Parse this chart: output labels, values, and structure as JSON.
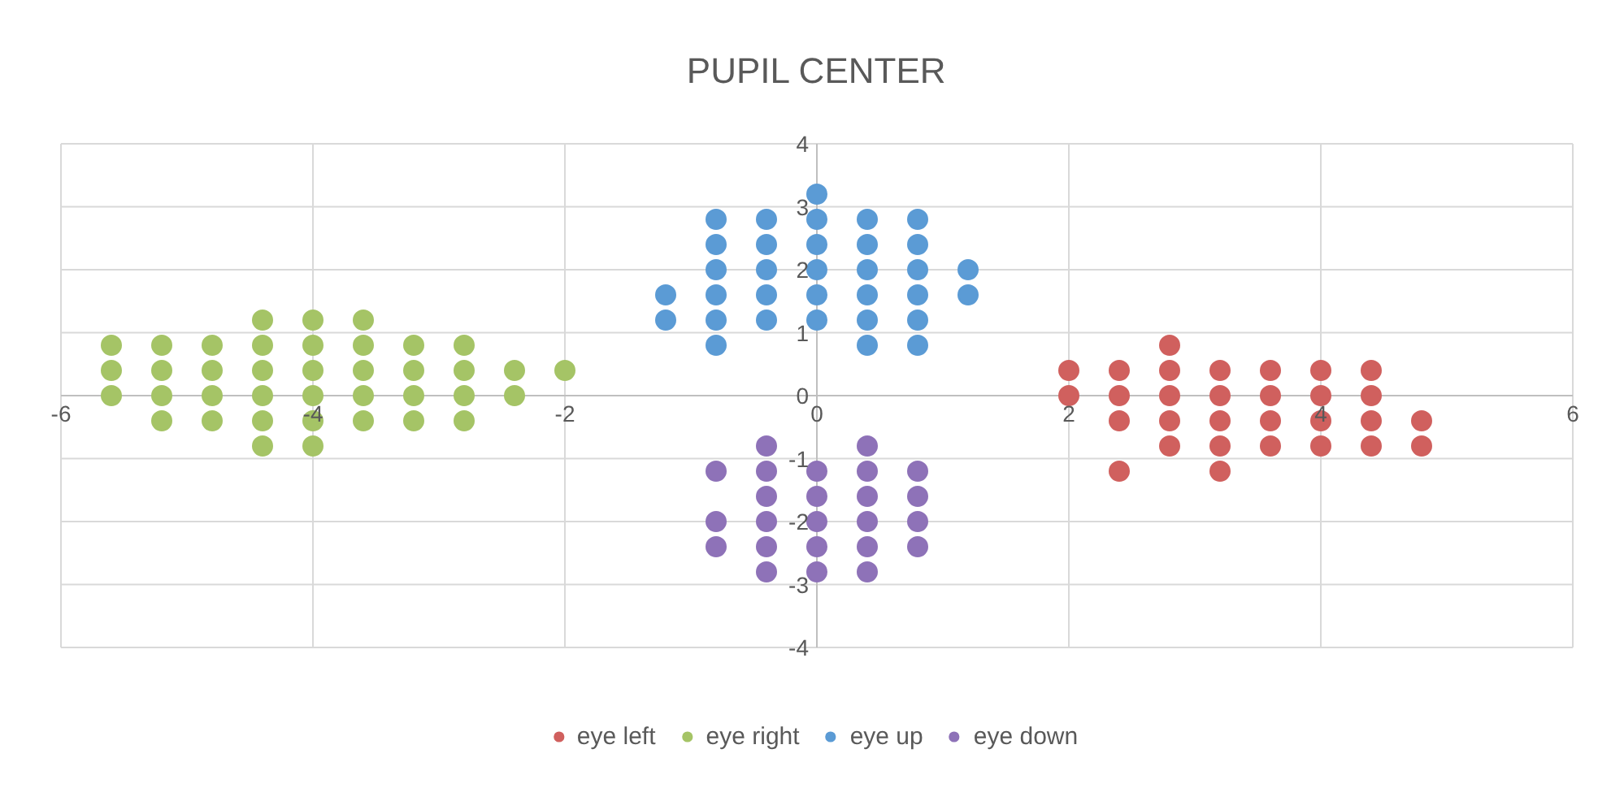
{
  "chart_data": {
    "type": "scatter",
    "title": "PUPIL CENTER",
    "xlim": [
      -6,
      6
    ],
    "ylim": [
      -4,
      4
    ],
    "xticks": [
      -6,
      -4,
      -2,
      0,
      2,
      4,
      6
    ],
    "yticks": [
      -4,
      -3,
      -2,
      -1,
      0,
      1,
      2,
      3,
      4
    ],
    "grid": true,
    "legend": "bottom",
    "marker": "circle",
    "series": [
      {
        "name": "eye left",
        "color": "#d0605e",
        "x": [
          2.0,
          2.0,
          2.4,
          2.4,
          2.4,
          2.4,
          2.8,
          2.8,
          2.8,
          2.8,
          2.8,
          3.2,
          3.2,
          3.2,
          3.2,
          3.2,
          3.6,
          3.6,
          3.6,
          3.6,
          4.0,
          4.0,
          4.0,
          4.0,
          4.4,
          4.4,
          4.4,
          4.4,
          4.8,
          4.8
        ],
        "values": [
          0.4,
          0,
          0.4,
          0,
          -0.4,
          -1.2,
          0.8,
          0.4,
          0,
          -0.4,
          -0.8,
          0.4,
          0,
          -0.4,
          -0.8,
          -1.2,
          0.4,
          0,
          -0.4,
          -0.8,
          0.4,
          0,
          -0.4,
          -0.8,
          0.4,
          0,
          -0.4,
          -0.8,
          -0.4,
          -0.8
        ]
      },
      {
        "name": "eye right",
        "color": "#a5c466",
        "x": [
          -5.6,
          -5.6,
          -5.6,
          -5.2,
          -5.2,
          -5.2,
          -5.2,
          -4.8,
          -4.8,
          -4.8,
          -4.8,
          -4.4,
          -4.4,
          -4.4,
          -4.4,
          -4.4,
          -4.4,
          -4.0,
          -4.0,
          -4.0,
          -4.0,
          -4.0,
          -4.0,
          -3.6,
          -3.6,
          -3.6,
          -3.6,
          -3.6,
          -3.2,
          -3.2,
          -3.2,
          -3.2,
          -2.8,
          -2.8,
          -2.8,
          -2.8,
          -2.4,
          -2.4,
          -2.0
        ],
        "values": [
          0.8,
          0.4,
          0,
          0.8,
          0.4,
          0,
          -0.4,
          0.8,
          0.4,
          0,
          -0.4,
          1.2,
          0.8,
          0.4,
          0,
          -0.4,
          -0.8,
          1.2,
          0.8,
          0.4,
          0,
          -0.4,
          -0.8,
          1.2,
          0.8,
          0.4,
          0,
          -0.4,
          0.8,
          0.4,
          0,
          -0.4,
          0.8,
          0.4,
          0,
          -0.4,
          0.4,
          0,
          0.4
        ]
      },
      {
        "name": "eye up",
        "color": "#5b9bd5",
        "x": [
          -1.2,
          -1.2,
          -0.8,
          -0.8,
          -0.8,
          -0.8,
          -0.8,
          -0.8,
          -0.4,
          -0.4,
          -0.4,
          -0.4,
          -0.4,
          0,
          0,
          0,
          0,
          0,
          0,
          0.4,
          0.4,
          0.4,
          0.4,
          0.4,
          0.4,
          0.8,
          0.8,
          0.8,
          0.8,
          0.8,
          0.8,
          1.2,
          1.2
        ],
        "values": [
          1.6,
          1.2,
          2.8,
          2.4,
          2.0,
          1.6,
          1.2,
          0.8,
          2.8,
          2.4,
          2.0,
          1.6,
          1.2,
          3.2,
          2.8,
          2.4,
          2.0,
          1.6,
          1.2,
          2.8,
          2.4,
          2.0,
          1.6,
          1.2,
          0.8,
          2.8,
          2.4,
          2.0,
          1.6,
          1.2,
          0.8,
          2.0,
          1.6
        ]
      },
      {
        "name": "eye down",
        "color": "#8e72b8",
        "x": [
          -0.8,
          -0.8,
          -0.8,
          -0.4,
          -0.4,
          -0.4,
          -0.4,
          -0.4,
          -0.4,
          0,
          0,
          0,
          0,
          0,
          0.4,
          0.4,
          0.4,
          0.4,
          0.4,
          0.4,
          0.8,
          0.8,
          0.8,
          0.8
        ],
        "values": [
          -1.2,
          -2.0,
          -2.4,
          -0.8,
          -1.2,
          -1.6,
          -2.0,
          -2.4,
          -2.8,
          -1.2,
          -1.6,
          -2.0,
          -2.4,
          -2.8,
          -0.8,
          -1.2,
          -1.6,
          -2.0,
          -2.4,
          -2.8,
          -1.2,
          -1.6,
          -2.0,
          -2.4
        ]
      }
    ]
  }
}
